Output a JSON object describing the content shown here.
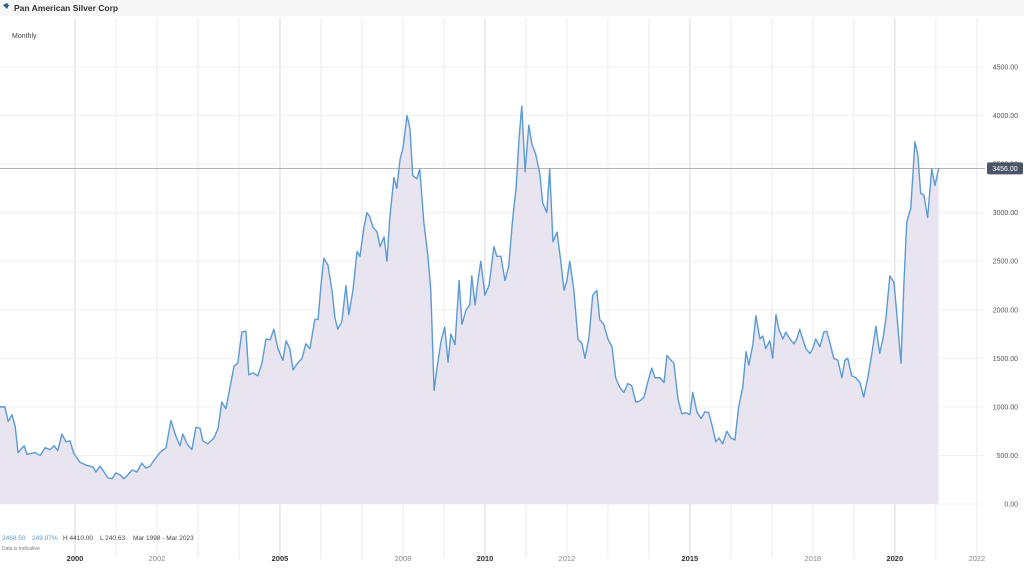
{
  "chart_data": {
    "type": "area",
    "title": "Pan American Silver Corp",
    "subtitle": "Monthly",
    "color": "#5b9bd5",
    "fill": "#e8e4f0",
    "grid": true,
    "xlim": [
      1998.17,
      2022.2
    ],
    "ylim": [
      0,
      5000
    ],
    "xticks": [
      2000,
      2001,
      2002,
      2003,
      2004,
      2005,
      2006,
      2007,
      2008,
      2009,
      2010,
      2011,
      2012,
      2013,
      2014,
      2015,
      2016,
      2017,
      2018,
      2019,
      2020,
      2021,
      2022
    ],
    "xtick_labels": [
      {
        "value": 2000,
        "label": "2000"
      },
      {
        "value": 2002,
        "label": "2002"
      },
      {
        "value": 2005,
        "label": "2005"
      },
      {
        "value": 2008,
        "label": "2008"
      },
      {
        "value": 2010,
        "label": "2010"
      },
      {
        "value": 2012,
        "label": "2012"
      },
      {
        "value": 2015,
        "label": "2015"
      },
      {
        "value": 2018,
        "label": "2018"
      },
      {
        "value": 2020,
        "label": "2020"
      },
      {
        "value": 2022,
        "label": "2022"
      }
    ],
    "yticks": [
      {
        "value": 0,
        "label": "0.00"
      },
      {
        "value": 500,
        "label": "500.00"
      },
      {
        "value": 1000,
        "label": "1000.00"
      },
      {
        "value": 1500,
        "label": "1500.00"
      },
      {
        "value": 2000,
        "label": "2000.00"
      },
      {
        "value": 2500,
        "label": "2500.00"
      },
      {
        "value": 3000,
        "label": "3000.00"
      },
      {
        "value": 3500,
        "label": "3500.00"
      },
      {
        "value": 4000,
        "label": "4000.00"
      },
      {
        "value": 4500,
        "label": "4500.00"
      }
    ],
    "price_line": {
      "value": 3456,
      "label": "3456.00"
    },
    "stats": [
      "2468.50",
      "249.97%",
      "H 4410.00",
      "L 240.63",
      "Mar 1998 - Mar 2023"
    ],
    "note": "Data is indicative",
    "x": [
      1998.17,
      1998.29,
      1998.37,
      1998.46,
      1998.54,
      1998.61,
      1998.76,
      1998.83,
      1999.02,
      1999.15,
      1999.27,
      1999.39,
      1999.49,
      1999.58,
      1999.68,
      1999.78,
      1999.88,
      1999.97,
      2000.12,
      2000.27,
      2000.44,
      2000.51,
      2000.61,
      2000.71,
      2000.8,
      2000.9,
      2001.0,
      2001.1,
      2001.19,
      2001.29,
      2001.39,
      2001.51,
      2001.63,
      2001.73,
      2001.83,
      2001.93,
      2002.07,
      2002.22,
      2002.34,
      2002.46,
      2002.56,
      2002.63,
      2002.73,
      2002.85,
      2002.95,
      2003.05,
      2003.12,
      2003.24,
      2003.39,
      2003.49,
      2003.58,
      2003.68,
      2003.78,
      2003.88,
      2003.97,
      2004.07,
      2004.17,
      2004.24,
      2004.34,
      2004.46,
      2004.56,
      2004.66,
      2004.76,
      2004.85,
      2004.95,
      2005.07,
      2005.15,
      2005.24,
      2005.32,
      2005.41,
      2005.54,
      2005.63,
      2005.73,
      2005.85,
      2005.93,
      2006.0,
      2006.07,
      2006.17,
      2006.27,
      2006.34,
      2006.41,
      2006.51,
      2006.61,
      2006.68,
      2006.78,
      2006.88,
      2006.95,
      2007.05,
      2007.12,
      2007.19,
      2007.27,
      2007.37,
      2007.44,
      2007.54,
      2007.61,
      2007.68,
      2007.78,
      2007.85,
      2007.93,
      2008.0,
      2008.1,
      2008.17,
      2008.24,
      2008.34,
      2008.41,
      2008.51,
      2008.61,
      2008.68,
      2008.76,
      2008.83,
      2008.93,
      2009.02,
      2009.1,
      2009.17,
      2009.27,
      2009.37,
      2009.44,
      2009.54,
      2009.63,
      2009.68,
      2009.76,
      2009.83,
      2009.9,
      2010.0,
      2010.1,
      2010.22,
      2010.29,
      2010.39,
      2010.49,
      2010.58,
      2010.68,
      2010.76,
      2010.83,
      2010.9,
      2010.98,
      2011.07,
      2011.15,
      2011.24,
      2011.34,
      2011.41,
      2011.51,
      2011.58,
      2011.66,
      2011.76,
      2011.85,
      2011.93,
      2012.0,
      2012.07,
      2012.17,
      2012.27,
      2012.37,
      2012.44,
      2012.54,
      2012.63,
      2012.73,
      2012.8,
      2012.9,
      2013.0,
      2013.1,
      2013.19,
      2013.29,
      2013.39,
      2013.49,
      2013.58,
      2013.68,
      2013.78,
      2013.88,
      2013.97,
      2014.07,
      2014.15,
      2014.27,
      2014.37,
      2014.44,
      2014.54,
      2014.61,
      2014.71,
      2014.8,
      2014.9,
      2015.0,
      2015.07,
      2015.17,
      2015.27,
      2015.37,
      2015.46,
      2015.56,
      2015.63,
      2015.71,
      2015.8,
      2015.9,
      2016.0,
      2016.1,
      2016.19,
      2016.29,
      2016.37,
      2016.44,
      2016.54,
      2016.61,
      2016.71,
      2016.78,
      2016.85,
      2016.95,
      2017.02,
      2017.1,
      2017.17,
      2017.27,
      2017.34,
      2017.44,
      2017.54,
      2017.61,
      2017.68,
      2017.76,
      2017.83,
      2017.93,
      2018.0,
      2018.07,
      2018.17,
      2018.27,
      2018.34,
      2018.44,
      2018.51,
      2018.61,
      2018.71,
      2018.78,
      2018.85,
      2018.95,
      2019.05,
      2019.15,
      2019.24,
      2019.34,
      2019.44,
      2019.54,
      2019.63,
      2019.71,
      2019.78,
      2019.88,
      2019.98,
      2020.05,
      2020.15,
      2020.22,
      2020.29,
      2020.39,
      2020.49,
      2020.56,
      2020.63,
      2020.71,
      2020.8,
      2020.9,
      2020.98,
      2021.07
    ],
    "series": [
      {
        "name": "Pan American Silver Corp",
        "color": "#5b9bd5",
        "values": [
          1000,
          1000,
          850,
          920,
          800,
          530,
          600,
          510,
          530,
          500,
          580,
          560,
          600,
          550,
          720,
          640,
          650,
          520,
          430,
          400,
          380,
          330,
          390,
          330,
          270,
          260,
          320,
          300,
          260,
          300,
          350,
          330,
          420,
          370,
          390,
          450,
          530,
          580,
          860,
          700,
          600,
          720,
          620,
          560,
          790,
          780,
          650,
          620,
          680,
          780,
          1050,
          980,
          1200,
          1420,
          1450,
          1770,
          1780,
          1330,
          1350,
          1320,
          1450,
          1700,
          1690,
          1800,
          1600,
          1480,
          1680,
          1600,
          1380,
          1440,
          1500,
          1650,
          1600,
          1900,
          1900,
          2250,
          2530,
          2460,
          2200,
          1920,
          1800,
          1880,
          2250,
          1950,
          2200,
          2600,
          2550,
          2850,
          3000,
          2960,
          2850,
          2800,
          2650,
          2750,
          2500,
          2950,
          3360,
          3250,
          3550,
          3660,
          4000,
          3870,
          3380,
          3350,
          3450,
          2900,
          2550,
          2200,
          1170,
          1400,
          1680,
          1820,
          1460,
          1750,
          1640,
          2300,
          1850,
          2000,
          2050,
          2350,
          2050,
          2300,
          2500,
          2150,
          2250,
          2650,
          2550,
          2550,
          2300,
          2450,
          2950,
          3250,
          3750,
          4100,
          3420,
          3900,
          3700,
          3600,
          3400,
          3100,
          3000,
          3450,
          2700,
          2800,
          2500,
          2200,
          2300,
          2500,
          2200,
          1700,
          1650,
          1500,
          1720,
          2150,
          2200,
          1900,
          1850,
          1700,
          1620,
          1300,
          1200,
          1150,
          1240,
          1220,
          1050,
          1060,
          1100,
          1250,
          1400,
          1300,
          1300,
          1250,
          1530,
          1480,
          1450,
          1080,
          930,
          940,
          920,
          1150,
          950,
          880,
          950,
          940,
          780,
          640,
          680,
          620,
          750,
          680,
          660,
          1000,
          1200,
          1570,
          1430,
          1650,
          1940,
          1700,
          1730,
          1600,
          1680,
          1500,
          1950,
          1800,
          1700,
          1770,
          1700,
          1650,
          1700,
          1800,
          1690,
          1600,
          1550,
          1600,
          1700,
          1620,
          1770,
          1780,
          1620,
          1500,
          1480,
          1300,
          1480,
          1500,
          1320,
          1300,
          1250,
          1100,
          1300,
          1550,
          1830,
          1550,
          1700,
          1900,
          2350,
          2280,
          1950,
          1450,
          2250,
          2900,
          3050,
          3730,
          3600,
          3200,
          3180,
          2950,
          3450,
          3280,
          3456
        ]
      }
    ]
  }
}
